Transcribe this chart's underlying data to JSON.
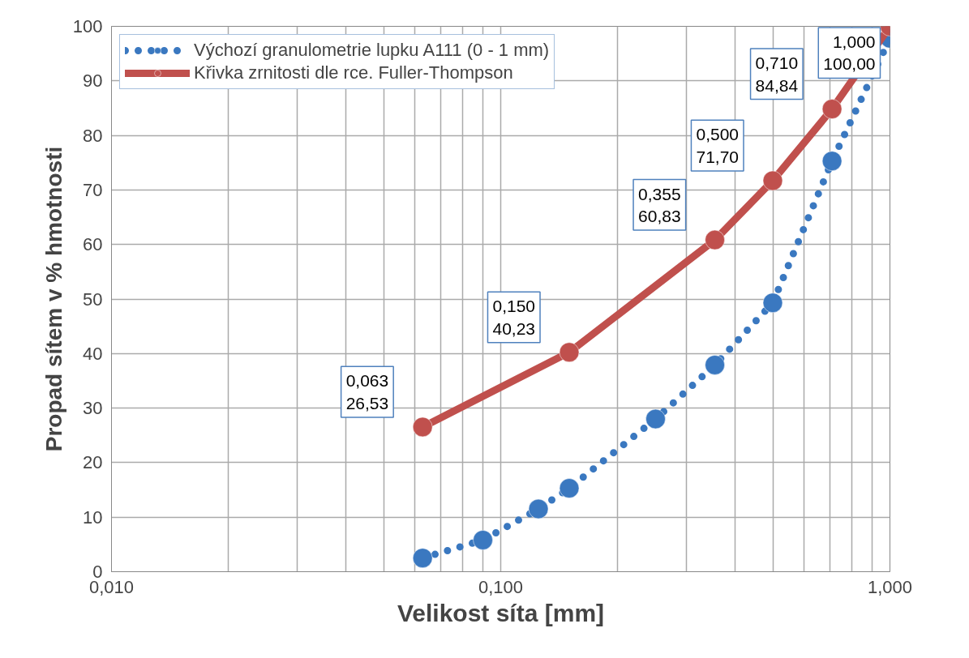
{
  "chart_data": {
    "type": "line",
    "xlabel": "Velikost síta [mm]",
    "ylabel": "Propad sítem v % hmotnosti",
    "log": "x",
    "xlim": [
      0.01,
      1
    ],
    "ylim": [
      0,
      100
    ],
    "xticks": [
      {
        "value": 0.01,
        "label": "0,010"
      },
      {
        "value": 0.02,
        "label": null
      },
      {
        "value": 0.03,
        "label": null
      },
      {
        "value": 0.04,
        "label": null
      },
      {
        "value": 0.05,
        "label": null
      },
      {
        "value": 0.06,
        "label": null
      },
      {
        "value": 0.07,
        "label": null
      },
      {
        "value": 0.08,
        "label": null
      },
      {
        "value": 0.09,
        "label": null
      },
      {
        "value": 0.1,
        "label": "0,100"
      },
      {
        "value": 0.2,
        "label": null
      },
      {
        "value": 0.3,
        "label": null
      },
      {
        "value": 0.4,
        "label": null
      },
      {
        "value": 0.5,
        "label": null
      },
      {
        "value": 0.6,
        "label": null
      },
      {
        "value": 0.7,
        "label": null
      },
      {
        "value": 0.8,
        "label": null
      },
      {
        "value": 0.9,
        "label": null
      },
      {
        "value": 1,
        "label": "1,000"
      }
    ],
    "yticks": [
      0,
      10,
      20,
      30,
      40,
      50,
      60,
      70,
      80,
      90,
      100
    ],
    "grid": true,
    "legend": "top left",
    "marker": "circle",
    "series": [
      {
        "name": "Výchozí granulometrie lupku A111 (0 - 1 mm)",
        "color": "#3a78c0",
        "line_style": "dotted",
        "x": [
          0.063,
          0.09,
          0.125,
          0.15,
          0.25,
          0.355,
          0.5,
          0.71,
          1.0
        ],
        "values": [
          2.5,
          5.8,
          11.5,
          15.3,
          28.0,
          37.9,
          49.3,
          75.3,
          97.8
        ]
      },
      {
        "name": "Křivka zrnitosti dle rce. Fuller-Thompson",
        "color": "#c0504d",
        "line_style": "solid",
        "x": [
          0.063,
          0.15,
          0.355,
          0.5,
          0.71,
          1.0
        ],
        "values": [
          26.53,
          40.23,
          60.83,
          71.7,
          84.84,
          100.0
        ],
        "value_labels": [
          "0,063\n26,53",
          "0,150\n40,23",
          "0,355\n60,83",
          "0,500\n71,70",
          "0,710\n84,84",
          "1,000\n100,00"
        ]
      }
    ]
  }
}
